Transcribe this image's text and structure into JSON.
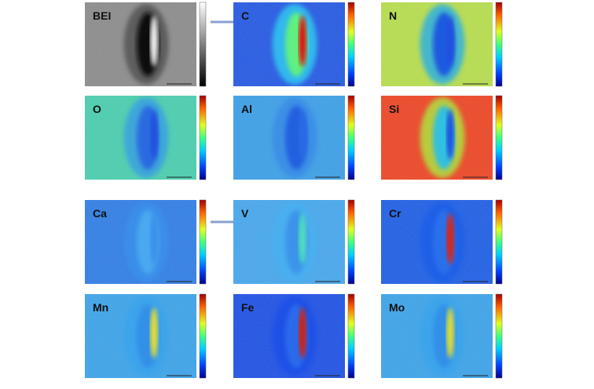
{
  "panels": [
    {
      "label": "BEI"
    },
    {
      "label": "C"
    },
    {
      "label": "N"
    },
    {
      "label": "O"
    },
    {
      "label": "Al"
    },
    {
      "label": "Si"
    },
    {
      "label": "Ca"
    },
    {
      "label": "V"
    },
    {
      "label": "Cr"
    },
    {
      "label": "Mn"
    },
    {
      "label": "Fe"
    },
    {
      "label": "Mo"
    }
  ]
}
